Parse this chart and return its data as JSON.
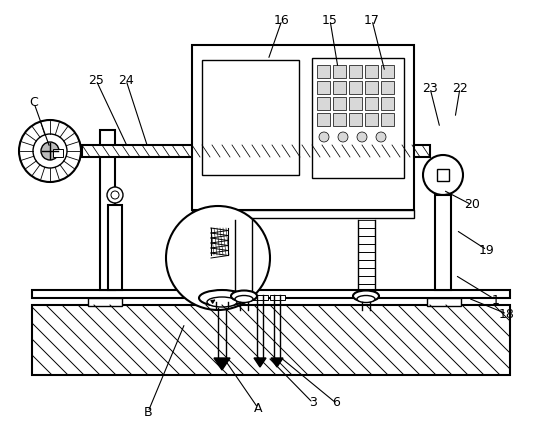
{
  "bg_color": "#ffffff",
  "lc": "#000000",
  "label_fs": 9,
  "annotations": [
    [
      "1",
      496,
      300,
      455,
      275
    ],
    [
      "3",
      313,
      403,
      268,
      357
    ],
    [
      "6",
      336,
      403,
      280,
      357
    ],
    [
      "A",
      258,
      408,
      225,
      360
    ],
    [
      "B",
      148,
      412,
      185,
      323
    ],
    [
      "C",
      34,
      103,
      50,
      148
    ],
    [
      "15",
      330,
      20,
      338,
      68
    ],
    [
      "16",
      282,
      20,
      268,
      60
    ],
    [
      "17",
      372,
      20,
      385,
      72
    ],
    [
      "18",
      507,
      314,
      468,
      298
    ],
    [
      "19",
      487,
      250,
      456,
      230
    ],
    [
      "20",
      472,
      205,
      443,
      190
    ],
    [
      "22",
      460,
      88,
      455,
      118
    ],
    [
      "23",
      430,
      88,
      440,
      128
    ],
    [
      "24",
      126,
      80,
      148,
      148
    ],
    [
      "25",
      96,
      80,
      128,
      148
    ]
  ]
}
